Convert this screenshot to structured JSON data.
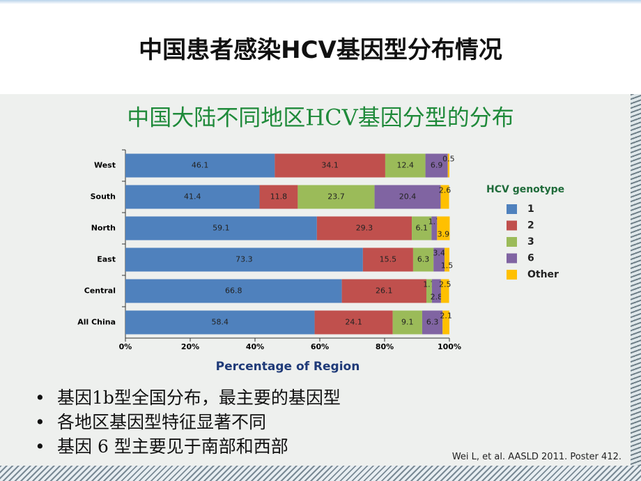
{
  "header": {
    "title": "中国患者感染HCV基因型分布情况"
  },
  "chart_data": {
    "type": "stacked-barh",
    "title": "中国大陆不同地区HCV基因分型的分布",
    "categories": [
      "West",
      "South",
      "North",
      "East",
      "Central",
      "All China"
    ],
    "series": [
      {
        "name": "1",
        "color": "#4f81bd",
        "values": [
          46.1,
          41.4,
          59.1,
          73.3,
          66.8,
          58.4
        ]
      },
      {
        "name": "2",
        "color": "#c0504d",
        "values": [
          34.1,
          11.8,
          29.3,
          15.5,
          26.1,
          24.1
        ]
      },
      {
        "name": "3",
        "color": "#9bbb59",
        "values": [
          12.4,
          23.7,
          6.1,
          6.3,
          1.7,
          9.1
        ]
      },
      {
        "name": "6",
        "color": "#8064a2",
        "values": [
          6.9,
          20.4,
          1.7,
          3.4,
          2.8,
          6.3
        ]
      },
      {
        "name": "Other",
        "color": "#ffc000",
        "values": [
          0.5,
          2.6,
          3.9,
          1.5,
          2.5,
          2.1
        ]
      }
    ],
    "xlim": [
      0,
      100
    ],
    "xticks": [
      {
        "value": 0,
        "label": "0%"
      },
      {
        "value": 20,
        "label": "20%"
      },
      {
        "value": 40,
        "label": "40%"
      },
      {
        "value": 60,
        "label": "60%"
      },
      {
        "value": 80,
        "label": "80%"
      },
      {
        "value": 100,
        "label": "100%"
      }
    ],
    "x_label": "Percentage of Region",
    "legend_title": "HCV genotype",
    "legend": "right"
  },
  "bullets": [
    "基因1b型全国分布，最主要的基因型",
    "各地区基因型特征显著不同",
    "基因 6 型主要见于南部和西部"
  ],
  "citation": "Wei L, et al. AASLD 2011. Poster 412."
}
